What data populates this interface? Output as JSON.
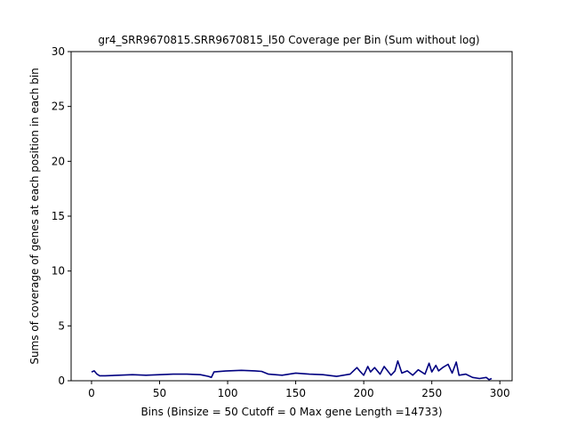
{
  "chart_data": {
    "type": "line",
    "title": "gr4_SRR9670815.SRR9670815_l50 Coverage per Bin (Sum without log)",
    "xlabel": "Bins  (Binsize = 50 Cutoff = 0 Max gene Length =14733)",
    "ylabel": "Sums of coverage of genes at each position in each bin",
    "xlim": [
      -15,
      309
    ],
    "ylim": [
      0,
      30
    ],
    "xticks": [
      0,
      50,
      100,
      150,
      200,
      250,
      300
    ],
    "yticks": [
      0,
      5,
      10,
      15,
      20,
      25,
      30
    ],
    "grid": false,
    "series": [
      {
        "color": "#000080",
        "x": [
          0,
          2,
          4,
          6,
          10,
          20,
          30,
          40,
          50,
          60,
          70,
          80,
          86,
          88,
          90,
          100,
          110,
          120,
          125,
          130,
          140,
          150,
          160,
          170,
          180,
          190,
          195,
          197,
          200,
          203,
          205,
          208,
          212,
          215,
          220,
          223,
          225,
          228,
          232,
          236,
          240,
          245,
          248,
          250,
          253,
          255,
          258,
          262,
          265,
          268,
          270,
          275,
          280,
          285,
          290,
          292,
          294
        ],
        "y": [
          0.8,
          0.9,
          0.6,
          0.45,
          0.45,
          0.5,
          0.55,
          0.5,
          0.55,
          0.6,
          0.6,
          0.55,
          0.4,
          0.3,
          0.8,
          0.9,
          0.95,
          0.9,
          0.85,
          0.6,
          0.5,
          0.7,
          0.6,
          0.55,
          0.4,
          0.6,
          1.2,
          0.9,
          0.5,
          1.3,
          0.8,
          1.2,
          0.6,
          1.3,
          0.5,
          0.9,
          1.8,
          0.7,
          0.9,
          0.5,
          1.0,
          0.6,
          1.6,
          0.8,
          1.4,
          0.9,
          1.2,
          1.5,
          0.7,
          1.7,
          0.5,
          0.6,
          0.3,
          0.2,
          0.3,
          0.1,
          0.2
        ]
      }
    ]
  }
}
